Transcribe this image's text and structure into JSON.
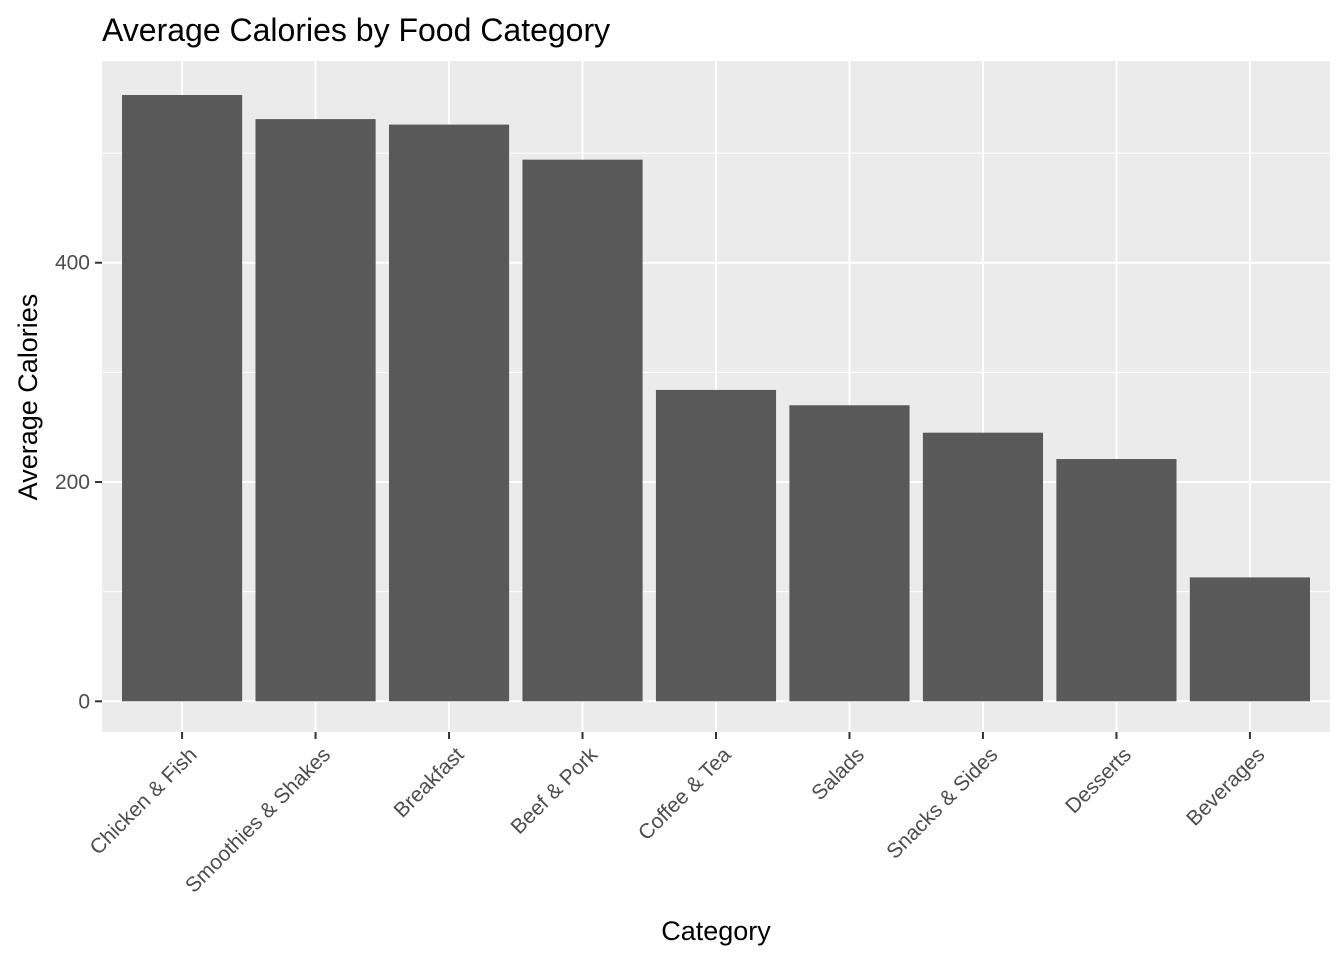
{
  "chart_data": {
    "type": "bar",
    "title": "Average Calories by Food Category",
    "xlabel": "Category",
    "ylabel": "Average Calories",
    "categories": [
      "Chicken & Fish",
      "Smoothies & Shakes",
      "Breakfast",
      "Beef & Pork",
      "Coffee & Tea",
      "Salads",
      "Snacks & Sides",
      "Desserts",
      "Beverages"
    ],
    "values": [
      553,
      531,
      526,
      494,
      284,
      270,
      245,
      221,
      113
    ],
    "ylim": [
      -28,
      584
    ],
    "yticks": [
      0,
      200,
      400
    ],
    "yticks_minor": [
      100,
      300,
      500
    ],
    "grid": true,
    "legend": "none",
    "colors": {
      "panel": "#ebebeb",
      "bar": "#595959",
      "grid": "#ffffff"
    }
  }
}
